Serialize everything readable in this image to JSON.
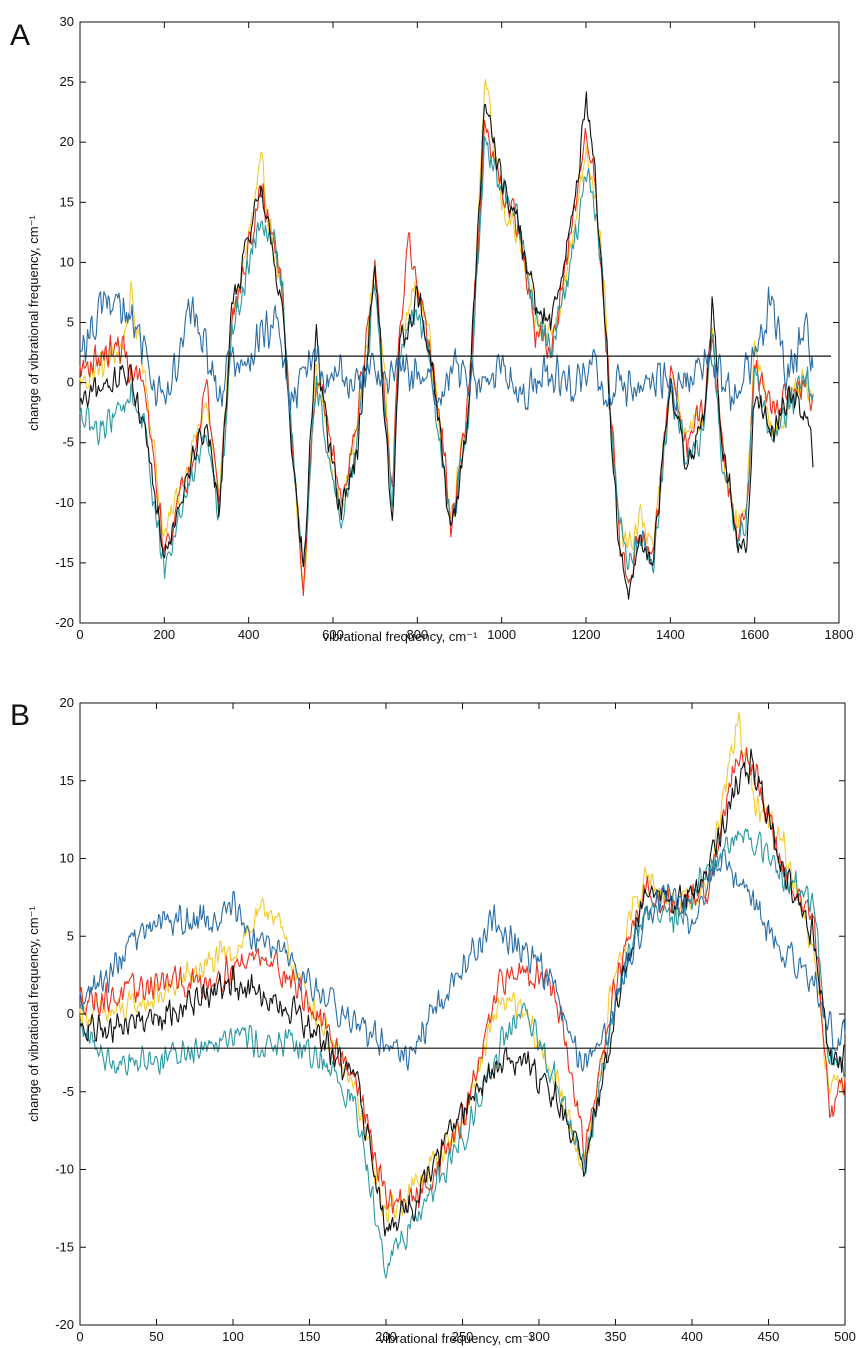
{
  "colors": {
    "background": "#ffffff",
    "axis": "#111111",
    "series": [
      "#f2cc2e",
      "#e8321c",
      "#2c9aa4",
      "#111111",
      "#2a6ea6"
    ]
  },
  "chart_data": [
    {
      "panel_label": "A",
      "type": "line",
      "title": "",
      "xlabel": "vibrational frequency, cm⁻¹",
      "ylabel": "change of vibrational frequency, cm⁻¹",
      "xlim": [
        0,
        1800
      ],
      "ylim": [
        -20,
        30
      ],
      "xticks": [
        0,
        200,
        400,
        600,
        800,
        1000,
        1200,
        1400,
        1600,
        1800
      ],
      "yticks": [
        -20,
        -15,
        -10,
        -5,
        0,
        5,
        10,
        15,
        20,
        25,
        30
      ],
      "grid": false,
      "legend": "none",
      "reference_line_y": 2.2,
      "noise_amplitude": [
        1.6,
        1.6,
        1.6,
        1.6,
        2.2
      ],
      "series": [
        {
          "color": "#f2cc2e",
          "x": [
            0,
            40,
            100,
            120,
            150,
            200,
            260,
            300,
            330,
            360,
            400,
            430,
            460,
            480,
            500,
            530,
            560,
            590,
            620,
            660,
            700,
            740,
            760,
            780,
            800,
            830,
            860,
            880,
            920,
            960,
            1000,
            1040,
            1080,
            1120,
            1160,
            1200,
            1220,
            1240,
            1260,
            1280,
            1300,
            1330,
            1360,
            1400,
            1440,
            1480,
            1500,
            1520,
            1560,
            1580,
            1600,
            1640,
            1680,
            1720,
            1740
          ],
          "y": [
            0,
            1,
            3,
            7,
            2,
            -13,
            -6,
            -2,
            -9,
            5,
            12,
            18,
            11,
            7,
            -4,
            -18,
            2,
            -5,
            -11,
            -3,
            10,
            -8,
            4,
            6,
            8,
            4,
            -6,
            -11,
            -3,
            25,
            15,
            12,
            5,
            4,
            10,
            20,
            16,
            10,
            -4,
            -12,
            -14,
            -11,
            -14,
            0,
            -4,
            -3,
            4,
            -5,
            -12,
            -10,
            3,
            -4,
            -2,
            0,
            -3
          ]
        },
        {
          "color": "#e8321c",
          "x": [
            0,
            40,
            100,
            120,
            150,
            200,
            260,
            300,
            330,
            360,
            400,
            430,
            460,
            480,
            500,
            530,
            560,
            590,
            620,
            660,
            700,
            740,
            760,
            780,
            800,
            830,
            860,
            880,
            920,
            960,
            1000,
            1040,
            1080,
            1120,
            1160,
            1200,
            1220,
            1240,
            1260,
            1280,
            1300,
            1330,
            1360,
            1400,
            1440,
            1480,
            1500,
            1520,
            1560,
            1580,
            1600,
            1640,
            1680,
            1720,
            1740
          ],
          "y": [
            1,
            2,
            3,
            1,
            0,
            -14,
            -7,
            0,
            -10,
            5,
            11,
            16,
            12,
            7,
            -3,
            -17,
            1,
            -4,
            -10,
            -2,
            9,
            -9,
            5,
            12,
            7,
            3,
            -5,
            -12,
            -2,
            21,
            16,
            13,
            4,
            3,
            11,
            21,
            17,
            8,
            -3,
            -13,
            -17,
            -12,
            -15,
            1,
            -5,
            -2,
            5,
            -4,
            -13,
            -11,
            2,
            -3,
            -1,
            0,
            -2
          ]
        },
        {
          "color": "#2c9aa4",
          "x": [
            0,
            40,
            100,
            120,
            150,
            200,
            260,
            300,
            330,
            360,
            400,
            430,
            460,
            480,
            500,
            530,
            560,
            590,
            620,
            660,
            700,
            740,
            760,
            780,
            800,
            830,
            860,
            880,
            920,
            960,
            1000,
            1040,
            1080,
            1120,
            1160,
            1200,
            1220,
            1240,
            1260,
            1280,
            1300,
            1330,
            1360,
            1400,
            1440,
            1480,
            1500,
            1520,
            1560,
            1580,
            1600,
            1640,
            1680,
            1720,
            1740
          ],
          "y": [
            -3,
            -4,
            -2,
            -1,
            -3,
            -16,
            -8,
            -4,
            -11,
            4,
            10,
            14,
            12,
            8,
            -4,
            -16,
            0,
            -6,
            -12,
            -4,
            8,
            -10,
            3,
            5,
            6,
            2,
            -7,
            -12,
            -4,
            20,
            16,
            14,
            5,
            3,
            9,
            17,
            15,
            9,
            -4,
            -12,
            -15,
            -13,
            -15,
            -1,
            -6,
            -4,
            4,
            -6,
            -13,
            -11,
            1,
            -5,
            -2,
            1,
            -2
          ]
        },
        {
          "color": "#111111",
          "x": [
            0,
            40,
            100,
            120,
            150,
            200,
            260,
            300,
            330,
            360,
            400,
            430,
            460,
            480,
            500,
            530,
            560,
            590,
            620,
            660,
            700,
            740,
            760,
            780,
            800,
            830,
            860,
            880,
            920,
            960,
            1000,
            1040,
            1080,
            1120,
            1160,
            1200,
            1220,
            1240,
            1260,
            1280,
            1300,
            1330,
            1360,
            1400,
            1440,
            1480,
            1500,
            1520,
            1560,
            1580,
            1600,
            1640,
            1680,
            1720,
            1740
          ],
          "y": [
            -2,
            -1,
            1,
            0,
            -3,
            -14,
            -7,
            -3,
            -11,
            6,
            12,
            17,
            10,
            6,
            -5,
            -16,
            4,
            -5,
            -11,
            -5,
            10,
            -12,
            4,
            5,
            7,
            3,
            -6,
            -13,
            -3,
            23,
            17,
            13,
            6,
            5,
            12,
            23,
            18,
            9,
            -5,
            -14,
            -17,
            -13,
            -15,
            0,
            -7,
            -3,
            6,
            -4,
            -14,
            -14,
            -1,
            -4,
            -1,
            -3,
            -6
          ]
        },
        {
          "color": "#2a6ea6",
          "x": [
            0,
            40,
            60,
            100,
            120,
            150,
            180,
            200,
            230,
            260,
            280,
            300,
            330,
            360,
            400,
            430,
            460,
            480,
            500,
            530,
            560,
            590,
            620,
            660,
            700,
            740,
            760,
            780,
            800,
            830,
            860,
            880,
            920,
            960,
            1000,
            1040,
            1080,
            1120,
            1160,
            1200,
            1220,
            1240,
            1260,
            1280,
            1300,
            1330,
            1360,
            1400,
            1440,
            1480,
            1500,
            1520,
            1560,
            1580,
            1600,
            1640,
            1680,
            1720,
            1740
          ],
          "y": [
            2,
            5,
            7,
            6,
            5,
            3,
            0,
            -2,
            1,
            6,
            5,
            3,
            -1,
            2,
            1,
            4,
            5,
            3,
            -2,
            1,
            2,
            0,
            1,
            0,
            1,
            0,
            2,
            0,
            1,
            0,
            -1,
            1,
            0,
            0,
            1,
            -1,
            0,
            1,
            0,
            0,
            1,
            0,
            -1,
            0,
            -1,
            0,
            1,
            -1,
            0,
            1,
            2,
            0,
            -1,
            1,
            2,
            7,
            0,
            5,
            1
          ]
        }
      ]
    },
    {
      "panel_label": "B",
      "type": "line",
      "title": "",
      "xlabel": "vibrational frequency, cm⁻¹",
      "ylabel": "change of vibrational frequency, cm⁻¹",
      "xlim": [
        0,
        500
      ],
      "ylim": [
        -20,
        20
      ],
      "xticks": [
        0,
        50,
        100,
        150,
        200,
        250,
        300,
        350,
        400,
        450,
        500
      ],
      "yticks": [
        -20,
        -15,
        -10,
        -5,
        0,
        5,
        10,
        15,
        20
      ],
      "grid": false,
      "legend": "none",
      "reference_line_y": -2.2,
      "noise_amplitude": [
        1.2,
        1.2,
        1.2,
        1.2,
        1.2
      ],
      "series": [
        {
          "color": "#f2cc2e",
          "x": [
            0,
            20,
            50,
            80,
            100,
            115,
            125,
            140,
            160,
            180,
            200,
            220,
            250,
            275,
            290,
            310,
            330,
            350,
            370,
            390,
            410,
            430,
            440,
            460,
            480,
            490,
            500
          ],
          "y": [
            0,
            0,
            1,
            3,
            4,
            6,
            7,
            3,
            -1,
            -5,
            -13,
            -11,
            -7,
            1,
            0,
            -4,
            -10,
            3,
            9,
            7,
            8,
            19,
            14,
            11,
            4,
            -5,
            -4
          ]
        },
        {
          "color": "#e8321c",
          "x": [
            0,
            20,
            50,
            80,
            100,
            120,
            140,
            160,
            180,
            200,
            220,
            250,
            275,
            290,
            310,
            330,
            350,
            370,
            390,
            410,
            430,
            440,
            460,
            480,
            490,
            500
          ],
          "y": [
            1,
            1,
            2,
            2,
            3,
            4,
            2,
            -1,
            -4,
            -12,
            -12,
            -7,
            2,
            3,
            2,
            -9,
            2,
            8,
            7,
            8,
            17,
            16,
            9,
            6,
            -7,
            -4
          ]
        },
        {
          "color": "#2c9aa4",
          "x": [
            0,
            20,
            50,
            80,
            100,
            120,
            140,
            160,
            180,
            200,
            220,
            250,
            275,
            290,
            310,
            330,
            350,
            370,
            390,
            410,
            430,
            440,
            460,
            480,
            490,
            500
          ],
          "y": [
            -1,
            -3,
            -3,
            -2,
            -1,
            -2,
            -2,
            -3,
            -6,
            -16,
            -13,
            -8,
            -2,
            0,
            -4,
            -10,
            1,
            7,
            6,
            9,
            12,
            11,
            9,
            7,
            -3,
            -4
          ]
        },
        {
          "color": "#111111",
          "x": [
            0,
            20,
            50,
            80,
            100,
            120,
            140,
            160,
            180,
            200,
            220,
            250,
            275,
            290,
            310,
            330,
            350,
            370,
            390,
            410,
            430,
            440,
            460,
            480,
            490,
            500
          ],
          "y": [
            -1,
            -1,
            0,
            1,
            2,
            1,
            0,
            -2,
            -4,
            -14,
            -12,
            -6,
            -3,
            -3,
            -5,
            -10,
            0,
            8,
            7,
            9,
            15,
            16,
            9,
            5,
            -3,
            -3
          ]
        },
        {
          "color": "#2a6ea6",
          "x": [
            0,
            15,
            30,
            50,
            70,
            90,
            100,
            110,
            130,
            150,
            170,
            185,
            200,
            215,
            230,
            250,
            270,
            290,
            310,
            320,
            330,
            345,
            360,
            380,
            400,
            420,
            440,
            460,
            480,
            495,
            500
          ],
          "y": [
            1,
            2,
            4,
            6,
            6,
            6,
            7,
            5,
            4,
            2,
            0,
            -1,
            -2,
            -3,
            0,
            3,
            6,
            4,
            2,
            -2,
            -3,
            -1,
            4,
            8,
            6,
            10,
            7,
            4,
            2,
            -2,
            -1
          ]
        }
      ]
    }
  ]
}
